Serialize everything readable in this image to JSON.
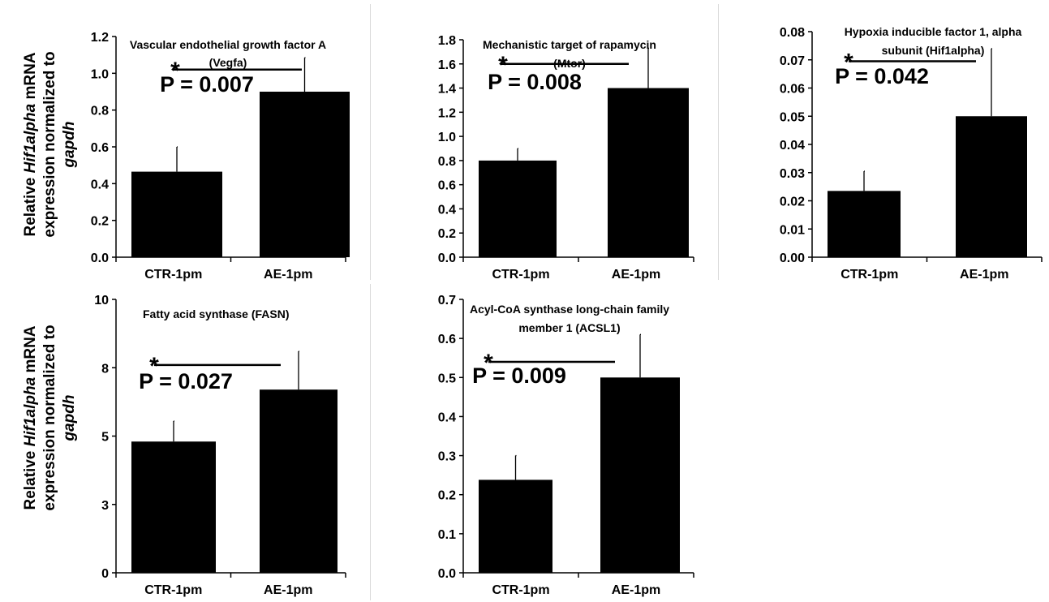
{
  "figure": {
    "shared_ylabel": {
      "pre": "Relative ",
      "italic_gene": "Hif1alpha",
      "mid": " mRNA",
      "line2": "expression normalized to",
      "italic_ref": "gapdh"
    }
  },
  "chart_data": [
    {
      "type": "bar",
      "title": [
        "Vascular endothelial growth factor A",
        "(Vegfa)"
      ],
      "categories": [
        "CTR-1pm",
        "AE-1pm"
      ],
      "values": [
        0.465,
        0.9
      ],
      "errors": [
        0.135,
        0.185
      ],
      "ylim": [
        0,
        1.2
      ],
      "yticks": [
        0,
        0.2,
        0.4,
        0.6,
        0.8,
        1.0,
        1.2
      ],
      "ytick_labels": [
        "0.0",
        "0.2",
        "0.4",
        "0.6",
        "0.8",
        "1.0",
        "1.2"
      ],
      "significance": {
        "marker": "*",
        "label": "P = 0.007",
        "bracket_y": 1.02
      },
      "grid": false,
      "legend": false
    },
    {
      "type": "bar",
      "title": [
        "Mechanistic target of rapamycin",
        "(Mtor)"
      ],
      "categories": [
        "CTR-1pm",
        "AE-1pm"
      ],
      "values": [
        0.8,
        1.4
      ],
      "errors": [
        0.1,
        0.33
      ],
      "ylim": [
        0,
        1.8
      ],
      "yticks": [
        0,
        0.2,
        0.4,
        0.6,
        0.8,
        1.0,
        1.2,
        1.4,
        1.6,
        1.8
      ],
      "ytick_labels": [
        "0.0",
        "0.2",
        "0.4",
        "0.6",
        "0.8",
        "1.0",
        "1.2",
        "1.4",
        "1.6",
        "1.8"
      ],
      "significance": {
        "marker": "*",
        "label": "P = 0.008",
        "bracket_y": 1.6
      },
      "grid": false,
      "legend": false
    },
    {
      "type": "bar",
      "title": [
        "Hypoxia inducible factor 1, alpha",
        "subunit (Hif1alpha)"
      ],
      "categories": [
        "CTR-1pm",
        "AE-1pm"
      ],
      "values": [
        0.0235,
        0.05
      ],
      "errors": [
        0.007,
        0.024
      ],
      "ylim": [
        0,
        0.08
      ],
      "yticks": [
        0,
        0.01,
        0.02,
        0.03,
        0.04,
        0.05,
        0.06,
        0.07,
        0.08
      ],
      "ytick_labels": [
        "0.00",
        "0.01",
        "0.02",
        "0.03",
        "0.04",
        "0.05",
        "0.06",
        "0.07",
        "0.08"
      ],
      "significance": {
        "marker": "*",
        "label": "P = 0.042",
        "bracket_y": 0.0695
      },
      "grid": false,
      "legend": false
    },
    {
      "type": "bar",
      "title": [
        "Fatty acid synthase (FASN)"
      ],
      "categories": [
        "CTR-1pm",
        "AE-1pm"
      ],
      "values": [
        4.8,
        6.7
      ],
      "errors": [
        0.75,
        1.4
      ],
      "ylim": [
        0,
        10
      ],
      "yticks": [
        0,
        2.5,
        5,
        7.5,
        10
      ],
      "ytick_labels": [
        "0",
        "3",
        "5",
        "8",
        "10"
      ],
      "significance": {
        "marker": "*",
        "label": "P = 0.027",
        "bracket_y": 7.6
      },
      "grid": false,
      "legend": false
    },
    {
      "type": "bar",
      "title": [
        "Acyl-CoA synthase long-chain family",
        "member 1 (ACSL1)"
      ],
      "categories": [
        "CTR-1pm",
        "AE-1pm"
      ],
      "values": [
        0.238,
        0.5
      ],
      "errors": [
        0.062,
        0.11
      ],
      "ylim": [
        0,
        0.7
      ],
      "yticks": [
        0,
        0.1,
        0.2,
        0.3,
        0.4,
        0.5,
        0.6,
        0.7
      ],
      "ytick_labels": [
        "0.0",
        "0.1",
        "0.2",
        "0.3",
        "0.4",
        "0.5",
        "0.6",
        "0.7"
      ],
      "significance": {
        "marker": "*",
        "label": "P = 0.009",
        "bracket_y": 0.54
      },
      "grid": false,
      "legend": false
    }
  ]
}
